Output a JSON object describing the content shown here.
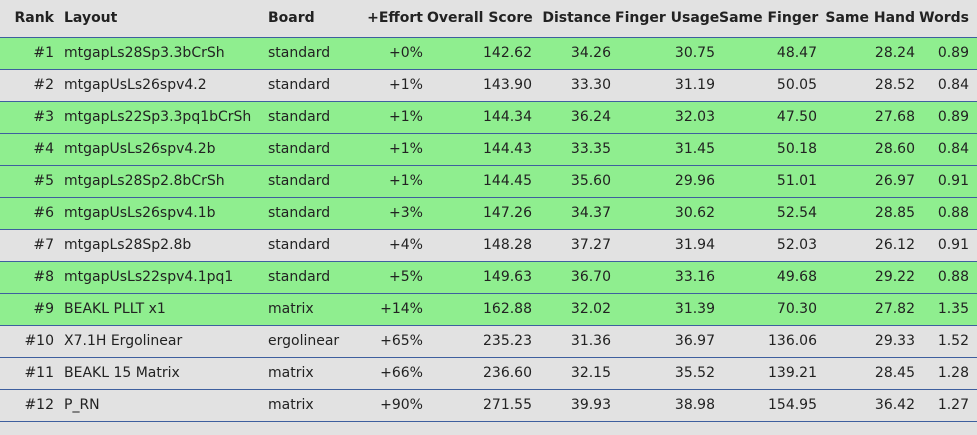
{
  "columns": {
    "rank": "Rank",
    "layout": "Layout",
    "board": "Board",
    "effort": "+Effort",
    "overall": "Overall Score",
    "distance": "Distance",
    "finger": "Finger Usage",
    "same_finger": "Same Finger",
    "same_hand": "Same Hand",
    "words": "Words"
  },
  "colors": {
    "highlight": "#8fee8f",
    "background": "#e2e2e2",
    "rule": "#3e5f9e"
  },
  "rows": [
    {
      "rank": "#1",
      "layout": "mtgapLs28Sp3.3bCrSh",
      "board": "standard",
      "effort": "+0%",
      "overall": "142.62",
      "distance": "34.26",
      "finger": "30.75",
      "same_finger": "48.47",
      "same_hand": "28.24",
      "words": "0.89",
      "highlighted": true
    },
    {
      "rank": "#2",
      "layout": "mtgapUsLs26spv4.2",
      "board": "standard",
      "effort": "+1%",
      "overall": "143.90",
      "distance": "33.30",
      "finger": "31.19",
      "same_finger": "50.05",
      "same_hand": "28.52",
      "words": "0.84",
      "highlighted": false
    },
    {
      "rank": "#3",
      "layout": "mtgapLs22Sp3.3pq1bCrSh",
      "board": "standard",
      "effort": "+1%",
      "overall": "144.34",
      "distance": "36.24",
      "finger": "32.03",
      "same_finger": "47.50",
      "same_hand": "27.68",
      "words": "0.89",
      "highlighted": true
    },
    {
      "rank": "#4",
      "layout": "mtgapUsLs26spv4.2b",
      "board": "standard",
      "effort": "+1%",
      "overall": "144.43",
      "distance": "33.35",
      "finger": "31.45",
      "same_finger": "50.18",
      "same_hand": "28.60",
      "words": "0.84",
      "highlighted": true
    },
    {
      "rank": "#5",
      "layout": "mtgapLs28Sp2.8bCrSh",
      "board": "standard",
      "effort": "+1%",
      "overall": "144.45",
      "distance": "35.60",
      "finger": "29.96",
      "same_finger": "51.01",
      "same_hand": "26.97",
      "words": "0.91",
      "highlighted": true
    },
    {
      "rank": "#6",
      "layout": "mtgapUsLs26spv4.1b",
      "board": "standard",
      "effort": "+3%",
      "overall": "147.26",
      "distance": "34.37",
      "finger": "30.62",
      "same_finger": "52.54",
      "same_hand": "28.85",
      "words": "0.88",
      "highlighted": true
    },
    {
      "rank": "#7",
      "layout": "mtgapLs28Sp2.8b",
      "board": "standard",
      "effort": "+4%",
      "overall": "148.28",
      "distance": "37.27",
      "finger": "31.94",
      "same_finger": "52.03",
      "same_hand": "26.12",
      "words": "0.91",
      "highlighted": false
    },
    {
      "rank": "#8",
      "layout": "mtgapUsLs22spv4.1pq1",
      "board": "standard",
      "effort": "+5%",
      "overall": "149.63",
      "distance": "36.70",
      "finger": "33.16",
      "same_finger": "49.68",
      "same_hand": "29.22",
      "words": "0.88",
      "highlighted": true
    },
    {
      "rank": "#9",
      "layout": "BEAKL PLLT x1",
      "board": "matrix",
      "effort": "+14%",
      "overall": "162.88",
      "distance": "32.02",
      "finger": "31.39",
      "same_finger": "70.30",
      "same_hand": "27.82",
      "words": "1.35",
      "highlighted": true
    },
    {
      "rank": "#10",
      "layout": "X7.1H Ergolinear",
      "board": "ergolinear",
      "effort": "+65%",
      "overall": "235.23",
      "distance": "31.36",
      "finger": "36.97",
      "same_finger": "136.06",
      "same_hand": "29.33",
      "words": "1.52",
      "highlighted": false
    },
    {
      "rank": "#11",
      "layout": "BEAKL 15 Matrix",
      "board": "matrix",
      "effort": "+66%",
      "overall": "236.60",
      "distance": "32.15",
      "finger": "35.52",
      "same_finger": "139.21",
      "same_hand": "28.45",
      "words": "1.28",
      "highlighted": false
    },
    {
      "rank": "#12",
      "layout": "P_RN",
      "board": "matrix",
      "effort": "+90%",
      "overall": "271.55",
      "distance": "39.93",
      "finger": "38.98",
      "same_finger": "154.95",
      "same_hand": "36.42",
      "words": "1.27",
      "highlighted": false
    }
  ]
}
